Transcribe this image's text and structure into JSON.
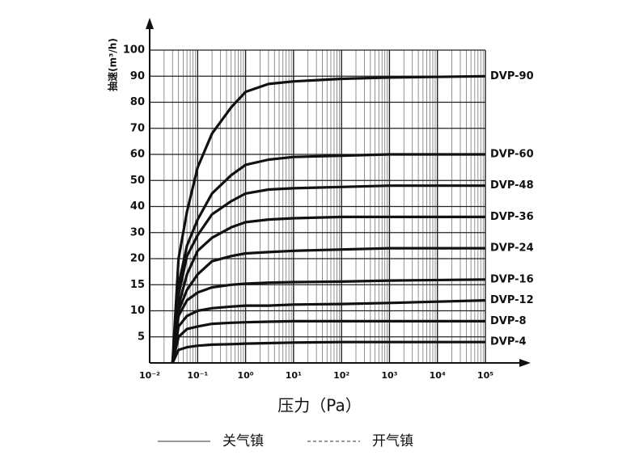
{
  "chart_data": {
    "type": "line",
    "y_label": "抽速(m³/h)",
    "x_label": "压力（Pa）",
    "x_log": true,
    "grid": true,
    "minor_grid": true,
    "xlim": [
      0.01,
      100000
    ],
    "xticks": [
      {
        "value": 0.01,
        "label": "10⁻²"
      },
      {
        "value": 0.1,
        "label": "10⁻¹"
      },
      {
        "value": 1,
        "label": "10⁰"
      },
      {
        "value": 10,
        "label": "10¹"
      },
      {
        "value": 100,
        "label": "10²"
      },
      {
        "value": 1000,
        "label": "10³"
      },
      {
        "value": 10000,
        "label": "10⁴"
      },
      {
        "value": 100000,
        "label": "10⁵"
      }
    ],
    "ylim": [
      0,
      100
    ],
    "yticks": [
      5,
      10,
      15,
      20,
      30,
      40,
      50,
      60,
      70,
      80,
      90,
      100
    ],
    "x": [
      0.03,
      0.04,
      0.06,
      0.1,
      0.2,
      0.5,
      1,
      3,
      10,
      100,
      1000,
      100000
    ],
    "series": [
      {
        "name": "DVP-90",
        "color": "#111111",
        "values": [
          0,
          20,
          38,
          55,
          68,
          78,
          84,
          87,
          88,
          89,
          89.5,
          90
        ]
      },
      {
        "name": "DVP-60",
        "color": "#111111",
        "values": [
          0,
          15,
          25,
          35,
          45,
          52,
          56,
          58,
          59,
          59.5,
          60,
          60
        ]
      },
      {
        "name": "DVP-48",
        "color": "#111111",
        "values": [
          0,
          13,
          21,
          29,
          37,
          42,
          45,
          46.5,
          47,
          47.5,
          48,
          48
        ]
      },
      {
        "name": "DVP-36",
        "color": "#111111",
        "values": [
          0,
          11,
          17,
          23,
          28,
          32,
          34,
          35,
          35.5,
          36,
          36,
          36
        ]
      },
      {
        "name": "DVP-24",
        "color": "#111111",
        "values": [
          0,
          10,
          14,
          17,
          19.5,
          21,
          22,
          22.5,
          23,
          23.5,
          24,
          24
        ]
      },
      {
        "name": "DVP-16",
        "color": "#111111",
        "values": [
          0,
          9,
          12,
          13.5,
          14.5,
          15,
          15.2,
          15.4,
          15.5,
          15.6,
          15.8,
          16
        ]
      },
      {
        "name": "DVP-12",
        "color": "#111111",
        "values": [
          0,
          7,
          9,
          10,
          10.5,
          10.8,
          11,
          11,
          11.2,
          11.3,
          11.5,
          12
        ]
      },
      {
        "name": "DVP-8",
        "color": "#111111",
        "values": [
          0,
          5,
          6.5,
          7,
          7.5,
          7.7,
          7.8,
          7.9,
          8,
          8,
          8,
          8
        ]
      },
      {
        "name": "DVP-4",
        "color": "#111111",
        "values": [
          0,
          2.5,
          3,
          3.3,
          3.5,
          3.6,
          3.7,
          3.8,
          3.9,
          4,
          4,
          4
        ]
      }
    ],
    "legend": [
      {
        "label": "关气镇",
        "dash": false
      },
      {
        "label": "开气镇",
        "dash": true
      }
    ]
  }
}
